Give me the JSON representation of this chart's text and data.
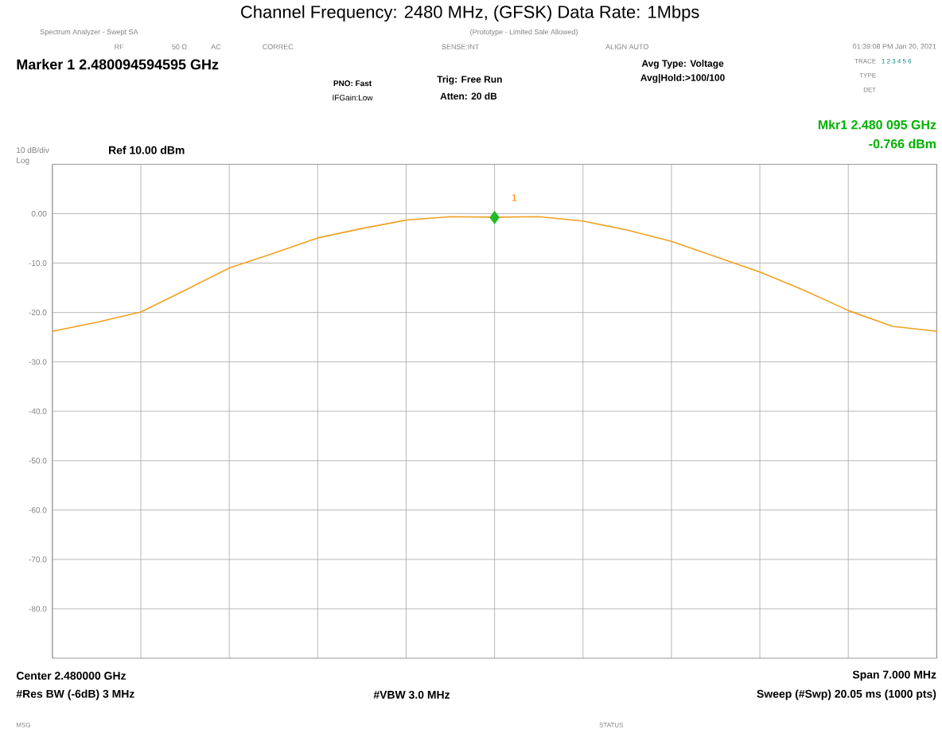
{
  "chart_data": {
    "type": "line",
    "title": "Channel Frequency: 2480 MHz, (GFSK) Data Rate: 1Mbps",
    "categories": [
      null,
      null,
      null,
      null,
      null,
      null,
      null,
      null,
      null,
      null,
      null,
      null,
      null,
      null,
      null,
      null,
      null,
      null,
      null,
      null,
      null
    ],
    "ylim": [
      -90,
      10
    ],
    "yticks": [
      {
        "value": 0,
        "label": "0.00"
      },
      {
        "value": -10,
        "label": "-10.0"
      },
      {
        "value": -20,
        "label": "-20.0"
      },
      {
        "value": -30,
        "label": "-30.0"
      },
      {
        "value": -40,
        "label": "-40.0"
      },
      {
        "value": -50,
        "label": "-50.0"
      },
      {
        "value": -60,
        "label": "-60.0"
      },
      {
        "value": -70,
        "label": "-70.0"
      },
      {
        "value": -80,
        "label": "-80.0"
      }
    ],
    "grid": true,
    "tick_labels": "y",
    "series": [
      {
        "color": "#f0a020",
        "values": [
          -23.8,
          -22.0,
          -19.9,
          -15.5,
          -11.0,
          -8.0,
          -4.9,
          -3.0,
          -1.3,
          -0.6,
          -0.7,
          -0.6,
          -1.5,
          -3.3,
          -5.6,
          -8.7,
          -11.8,
          -15.5,
          -19.6,
          -22.8,
          -23.8
        ]
      },
      {
        "type": "scatter",
        "marker": "diamond",
        "color": "#22bb22",
        "values": [
          null,
          null,
          null,
          null,
          null,
          null,
          null,
          null,
          null,
          null,
          -0.766,
          null,
          null,
          null,
          null,
          null,
          null,
          null,
          null,
          null,
          null
        ]
      }
    ],
    "annotations": [
      "Spectrum Analyzer - Swept SA",
      "(Prototype - Limited Sale Allowed)",
      "RF",
      "50 Ω",
      "AC",
      "CORREC",
      "SENSE:INT",
      "ALIGN AUTO",
      "01:39:08 PM Jan 20, 2021",
      "Marker 1 2.480094594595 GHz",
      "PNO: Fast",
      "IFGain:Low",
      "Trig: Free Run",
      "Atten: 20 dB",
      "Avg Type: Voltage",
      "Avg|Hold:>100/100",
      "TRACE",
      "1 2 3 4 5 6",
      "TYPE",
      "DET",
      "10 dB/div",
      "Log",
      "Ref 10.00 dBm",
      "Mkr1 2.480 095 GHz",
      "-0.766 dBm",
      "Center 2.480000 GHz",
      "#Res BW (-6dB) 3 MHz",
      "#VBW 3.0 MHz",
      "Span 7.000 MHz",
      "Sweep (#Swp) 20.05 ms (1000 pts)",
      "MSG",
      "STATUS",
      "1"
    ]
  }
}
